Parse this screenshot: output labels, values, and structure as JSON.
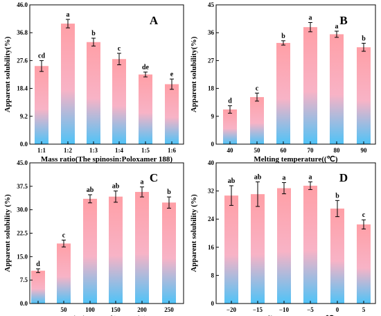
{
  "colors": {
    "bar_top": "#ff9fa6",
    "bar_bottom": "#4fc3f7",
    "frame": "#000000"
  },
  "chart_data": [
    {
      "panel": "A",
      "type": "bar",
      "xlabel": "Mass ratio(The spinosin:Poloxamer 188)",
      "ylabel": "Apparent solubility(%)",
      "ylim": [
        0,
        46.0
      ],
      "yticks": [
        "0.0",
        "9.2",
        "18.4",
        "27.6",
        "36.8",
        "46.0"
      ],
      "categories": [
        "1:1",
        "1:2",
        "1:3",
        "1:4",
        "1:5",
        "1:6"
      ],
      "values": [
        25.8,
        39.8,
        33.7,
        28.1,
        23.0,
        19.8
      ],
      "errors": [
        1.8,
        1.4,
        1.3,
        1.9,
        0.8,
        1.7
      ],
      "labels": [
        "cd",
        "a",
        "b",
        "c",
        "de",
        "e"
      ]
    },
    {
      "panel": "B",
      "type": "bar",
      "xlabel": "Melting temperature((℃)",
      "ylabel": "Apparent solubility(%)",
      "ylim": [
        0,
        45
      ],
      "yticks": [
        "0",
        "9",
        "18",
        "27",
        "36",
        "45"
      ],
      "categories": [
        "40",
        "50",
        "60",
        "70",
        "80",
        "90"
      ],
      "values": [
        11.2,
        15.2,
        32.7,
        37.8,
        35.5,
        31.3
      ],
      "errors": [
        1.2,
        1.3,
        0.7,
        1.5,
        1.0,
        1.3
      ],
      "labels": [
        "d",
        "c",
        "b",
        "a",
        "a",
        "b"
      ]
    },
    {
      "panel": "C",
      "type": "bar",
      "xlabel": "Stirring speed(rpm/min)",
      "ylabel": "Apparent solubility (%)",
      "ylim": [
        0,
        45.0
      ],
      "yticks": [
        "0.0",
        "7.5",
        "15.0",
        "22.5",
        "30.0",
        "37.5",
        "45.0"
      ],
      "categories": [
        "",
        "50",
        "100",
        "150",
        "200",
        "250"
      ],
      "values": [
        10.5,
        19.2,
        33.5,
        34.2,
        35.7,
        32.3
      ],
      "errors": [
        0.6,
        1.1,
        1.3,
        1.8,
        1.6,
        1.8
      ],
      "labels": [
        "d",
        "c",
        "ab",
        "ab",
        "a",
        "b"
      ]
    },
    {
      "panel": "D",
      "type": "bar",
      "xlabel": "Cooling temperature(℃)",
      "ylabel": "Apparent solubility (%)",
      "ylim": [
        0,
        40
      ],
      "yticks": [
        "0",
        "8",
        "16",
        "24",
        "32",
        "40"
      ],
      "categories": [
        "−20",
        "−15",
        "−10",
        "−5",
        "0",
        "5"
      ],
      "values": [
        30.7,
        31.1,
        32.8,
        33.5,
        27.0,
        22.5
      ],
      "errors": [
        2.8,
        3.5,
        1.6,
        1.1,
        2.3,
        1.3
      ],
      "labels": [
        "ab",
        "ab",
        "a",
        "a",
        "b",
        "c"
      ]
    }
  ]
}
